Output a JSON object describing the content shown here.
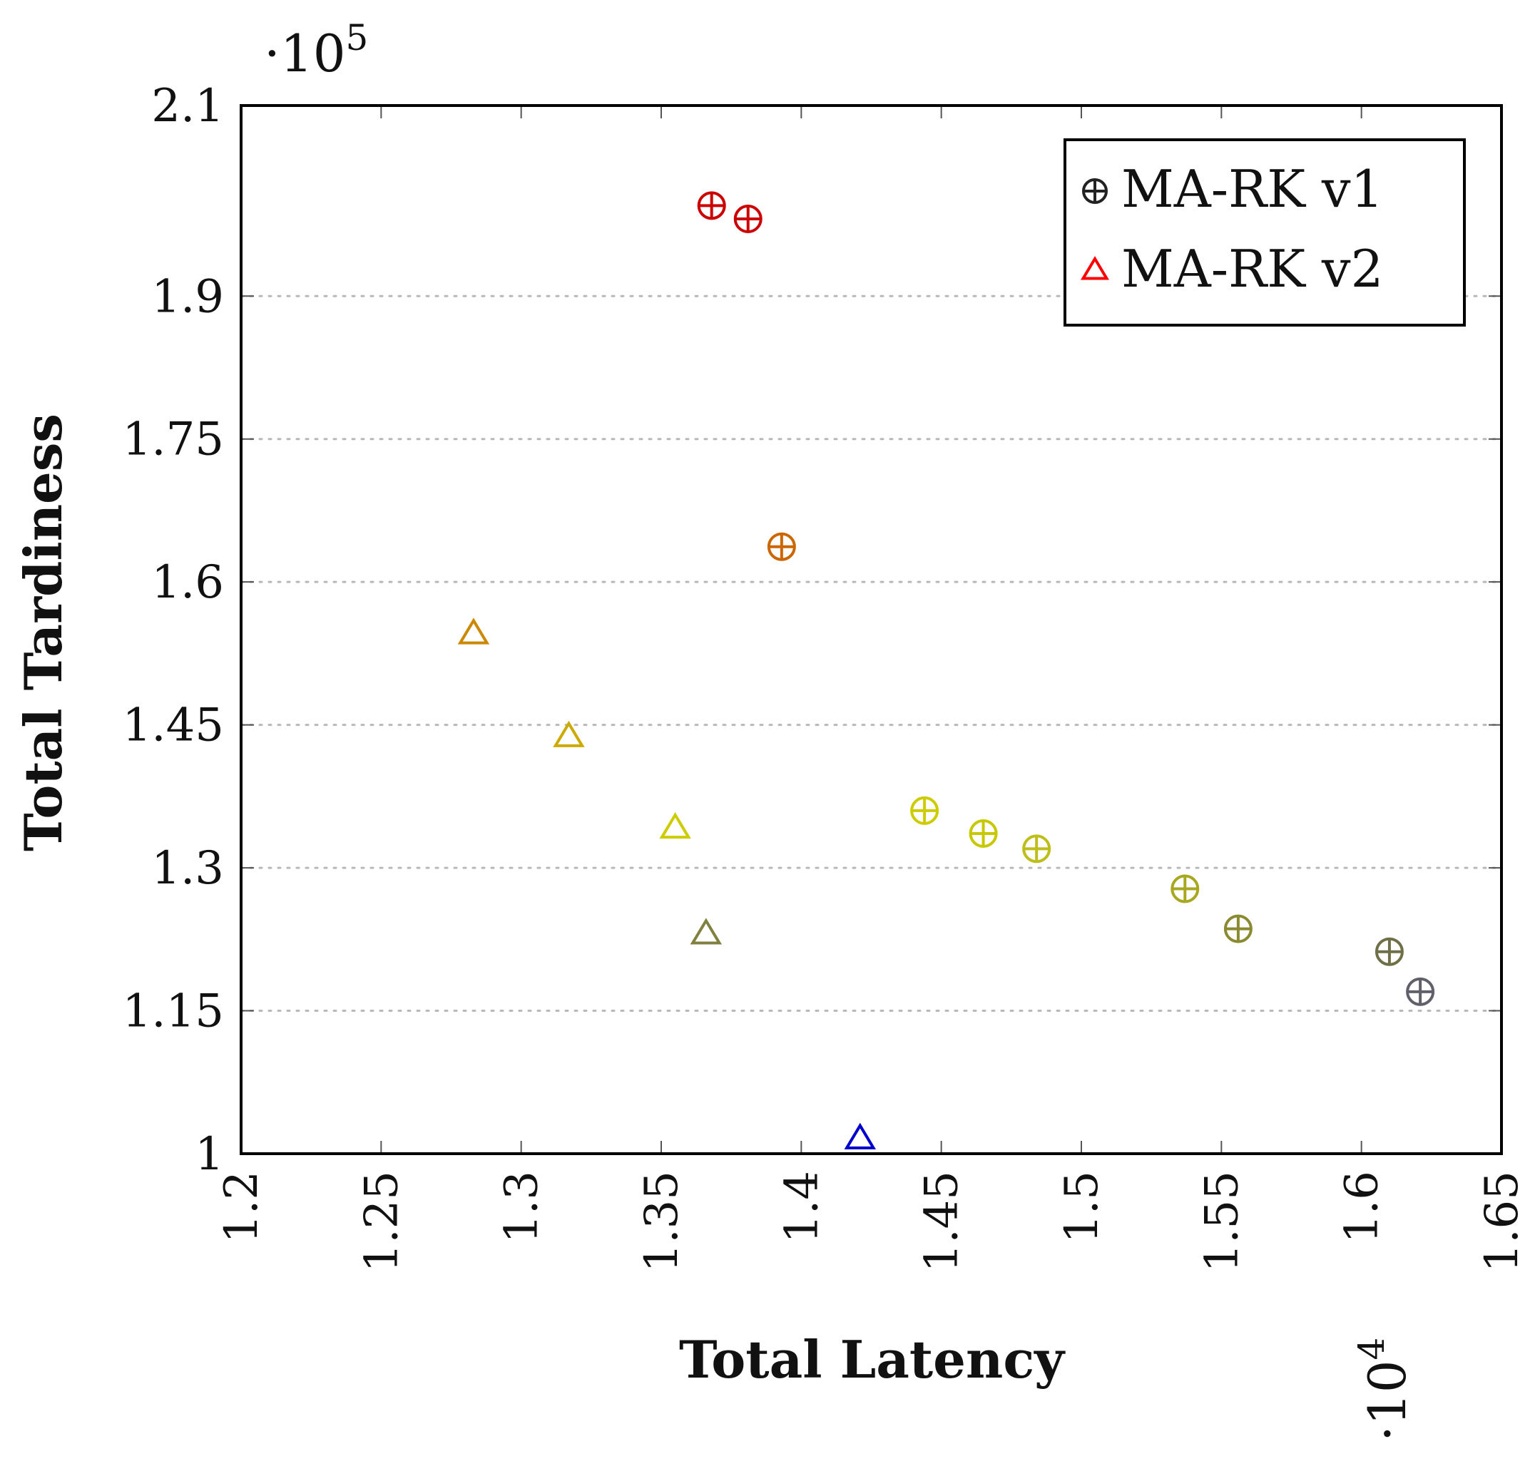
{
  "chart_data": {
    "type": "scatter",
    "title": "",
    "xlabel": "Total Latency",
    "ylabel": "Total Tardiness",
    "x_scale_label": "·10",
    "x_scale_exp": "4",
    "y_scale_label": "·10",
    "y_scale_exp": "5",
    "xlim": [
      1.2,
      1.65
    ],
    "ylim": [
      1.0,
      2.1
    ],
    "x_ticks": [
      "1.2",
      "1.25",
      "1.3",
      "1.35",
      "1.4",
      "1.45",
      "1.5",
      "1.55",
      "1.6",
      "1.65"
    ],
    "y_ticks": [
      "1",
      "1.15",
      "1.3",
      "1.45",
      "1.6",
      "1.75",
      "1.9",
      "2.1"
    ],
    "y_gridlines": [
      1.15,
      1.3,
      1.45,
      1.6,
      1.75,
      1.9
    ],
    "legend": {
      "position": "top-right",
      "entries": [
        {
          "label": "MA-RK v1",
          "marker": "circle-plus",
          "color": "#222222"
        },
        {
          "label": "MA-RK v2",
          "marker": "triangle",
          "color": "#ff0000"
        }
      ]
    },
    "series": [
      {
        "name": "MA-RK v1",
        "marker": "circle-plus",
        "points": [
          {
            "x": 1.368,
            "y": 1.995,
            "color": "#cc0000"
          },
          {
            "x": 1.381,
            "y": 1.981,
            "color": "#cc0000"
          },
          {
            "x": 1.393,
            "y": 1.637,
            "color": "#cc6600"
          },
          {
            "x": 1.444,
            "y": 1.36,
            "color": "#cccc00"
          },
          {
            "x": 1.465,
            "y": 1.336,
            "color": "#c8c800"
          },
          {
            "x": 1.484,
            "y": 1.32,
            "color": "#bebe1a"
          },
          {
            "x": 1.537,
            "y": 1.278,
            "color": "#a8a820"
          },
          {
            "x": 1.556,
            "y": 1.236,
            "color": "#8a8a30"
          },
          {
            "x": 1.61,
            "y": 1.212,
            "color": "#707048"
          },
          {
            "x": 1.621,
            "y": 1.17,
            "color": "#60606a"
          }
        ]
      },
      {
        "name": "MA-RK v2",
        "marker": "triangle",
        "points": [
          {
            "x": 1.283,
            "y": 1.545,
            "color": "#cc8800"
          },
          {
            "x": 1.317,
            "y": 1.437,
            "color": "#ccaa00"
          },
          {
            "x": 1.355,
            "y": 1.341,
            "color": "#cccc00"
          },
          {
            "x": 1.366,
            "y": 1.23,
            "color": "#808040"
          },
          {
            "x": 1.421,
            "y": 1.015,
            "color": "#0000cc"
          }
        ]
      }
    ]
  }
}
